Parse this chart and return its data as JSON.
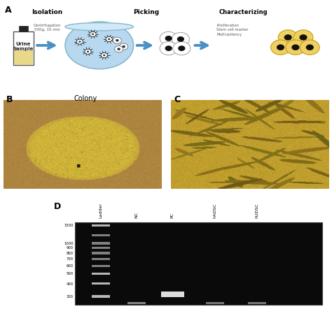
{
  "panel_A_label": "A",
  "panel_B_label": "B",
  "panel_C_label": "C",
  "panel_D_label": "D",
  "panel_B_title": "Colony",
  "panel_A": {
    "bottle_label": "Urine\nSample",
    "isolation_label": "Isolation",
    "isolation_sub": "Centrifugation\n500g, 10 min",
    "picking_label": "Picking",
    "characterizing_label": "Characterizing",
    "characterizing_sub": "Proliferation\nStem cell marker\nMulti-potency",
    "arrow_color": "#4a90c4",
    "bottle_body_color": "#e8d88a",
    "dish_color": "#b8d8f0",
    "dish_rim_color": "#88b8d0"
  },
  "panel_D": {
    "lane_labels": [
      "Ladder",
      "NC",
      "PC",
      "hADSC",
      "hUDSC"
    ],
    "y_ticks": [
      300,
      400,
      500,
      600,
      700,
      800,
      900,
      1000,
      1500
    ]
  }
}
